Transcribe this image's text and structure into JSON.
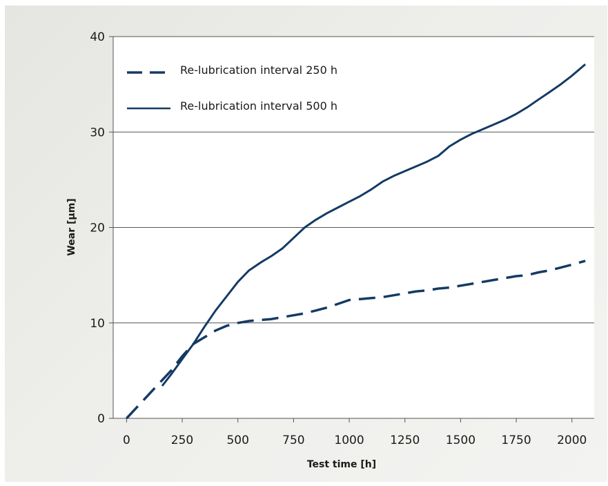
{
  "chart_data": {
    "type": "line",
    "title": "",
    "xlabel": "Test time [h]",
    "ylabel": "Wear [µm]",
    "xlim": [
      -60,
      2100
    ],
    "ylim": [
      0,
      40
    ],
    "xticks": [
      "0",
      "250",
      "500",
      "750",
      "1000",
      "1250",
      "1500",
      "1750",
      "2000"
    ],
    "yticks": [
      "0",
      "10",
      "20",
      "30",
      "40"
    ],
    "grid": "horizontal",
    "legend_position": "top-left",
    "colors": {
      "line": "#143a64",
      "grid": "#555555",
      "plot_bg": "#ffffff"
    },
    "series": [
      {
        "name": "Re-lubrication interval 250 h",
        "style": "dashed",
        "x": [
          0,
          100,
          200,
          250,
          300,
          350,
          400,
          450,
          500,
          550,
          600,
          650,
          700,
          750,
          800,
          850,
          900,
          950,
          1000,
          1050,
          1100,
          1150,
          1200,
          1250,
          1300,
          1350,
          1400,
          1450,
          1500,
          1550,
          1600,
          1650,
          1700,
          1750,
          1800,
          1850,
          1900,
          1950,
          2000,
          2060
        ],
        "y": [
          0,
          2.5,
          5.0,
          6.5,
          7.8,
          8.5,
          9.2,
          9.7,
          10.0,
          10.2,
          10.3,
          10.4,
          10.6,
          10.8,
          11.0,
          11.3,
          11.6,
          12.0,
          12.4,
          12.5,
          12.6,
          12.7,
          12.9,
          13.1,
          13.3,
          13.4,
          13.6,
          13.7,
          13.9,
          14.1,
          14.3,
          14.5,
          14.7,
          14.9,
          15.0,
          15.3,
          15.5,
          15.8,
          16.1,
          16.5
        ]
      },
      {
        "name": "Re-lubrication interval 500 h",
        "style": "solid",
        "x": [
          160,
          200,
          250,
          300,
          350,
          400,
          450,
          500,
          550,
          600,
          650,
          700,
          750,
          800,
          850,
          900,
          950,
          1000,
          1050,
          1100,
          1150,
          1200,
          1250,
          1300,
          1350,
          1400,
          1450,
          1500,
          1550,
          1600,
          1650,
          1700,
          1750,
          1800,
          1850,
          1900,
          1950,
          2000,
          2060
        ],
        "y": [
          3.4,
          4.6,
          6.2,
          7.8,
          9.6,
          11.3,
          12.8,
          14.3,
          15.5,
          16.3,
          17.0,
          17.8,
          18.9,
          20.0,
          20.8,
          21.5,
          22.1,
          22.7,
          23.3,
          24.0,
          24.8,
          25.4,
          25.9,
          26.4,
          26.9,
          27.5,
          28.5,
          29.2,
          29.8,
          30.3,
          30.8,
          31.3,
          31.9,
          32.6,
          33.4,
          34.2,
          35.0,
          35.9,
          37.1
        ]
      }
    ]
  }
}
